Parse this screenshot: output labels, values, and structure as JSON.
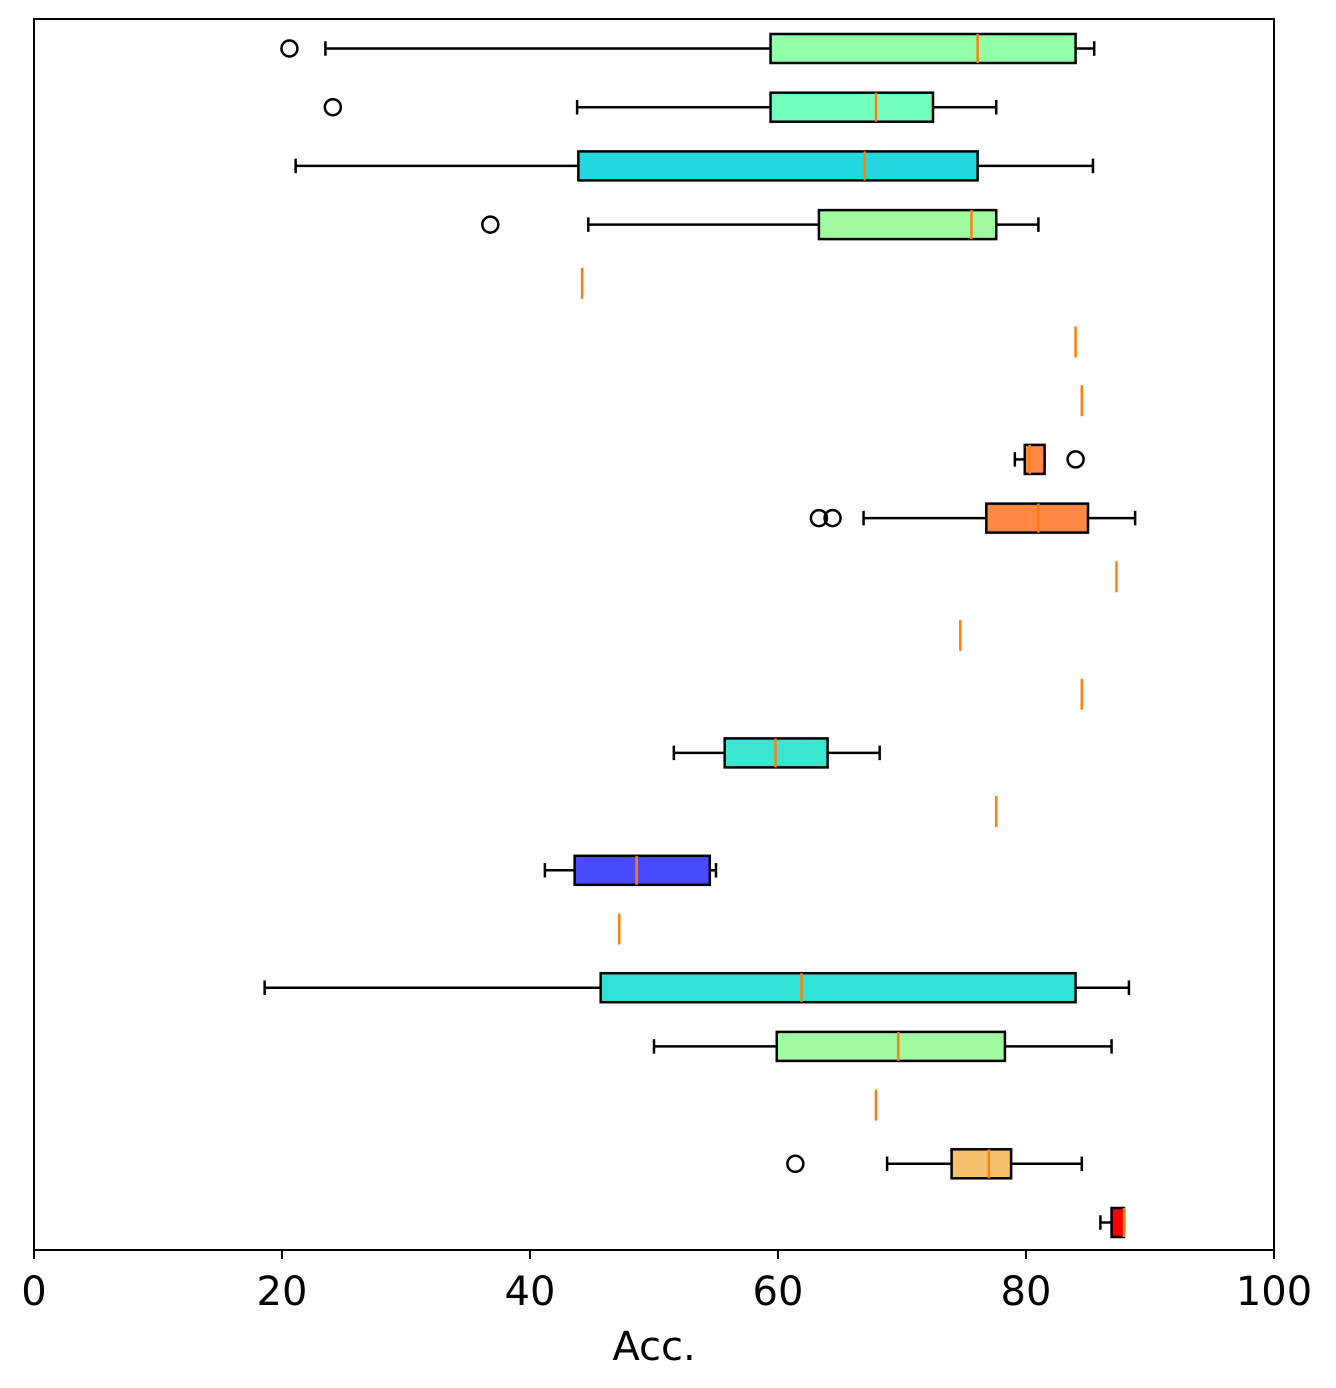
{
  "chart_data": {
    "type": "boxplot",
    "orientation": "horizontal",
    "title": "",
    "xlabel": "Acc.",
    "ylabel": "",
    "xlim": [
      0,
      100
    ],
    "xticks": [
      0,
      20,
      40,
      60,
      80,
      100
    ],
    "xtick_labels": [
      "0",
      "20",
      "40",
      "60",
      "80",
      "100"
    ],
    "grid": false,
    "median_color": "#ff7f0e",
    "boxes": [
      {
        "whisker_low": 23.5,
        "q1": 59.4,
        "median": 76.1,
        "q3": 84.0,
        "whisker_high": 85.5,
        "outliers": [
          20.6
        ],
        "color": "#90ffa8"
      },
      {
        "whisker_low": 43.8,
        "q1": 59.4,
        "median": 67.9,
        "q3": 72.5,
        "whisker_high": 77.6,
        "outliers": [
          24.1
        ],
        "color": "#72ffbe"
      },
      {
        "whisker_low": 21.1,
        "q1": 43.9,
        "median": 67.0,
        "q3": 76.1,
        "whisker_high": 85.4,
        "outliers": [],
        "color": "#22d7df"
      },
      {
        "whisker_low": 44.7,
        "q1": 63.3,
        "median": 75.6,
        "q3": 77.6,
        "whisker_high": 81.0,
        "outliers": [
          36.8
        ],
        "color": "#a0faa0"
      },
      {
        "whisker_low": 44.2,
        "q1": 44.2,
        "median": 44.2,
        "q3": 44.2,
        "whisker_high": 44.2,
        "outliers": [],
        "color": "#90ffa8"
      },
      {
        "whisker_low": 84.0,
        "q1": 84.0,
        "median": 84.0,
        "q3": 84.0,
        "whisker_high": 84.0,
        "outliers": [],
        "color": "#ff8844"
      },
      {
        "whisker_low": 84.5,
        "q1": 84.5,
        "median": 84.5,
        "q3": 84.5,
        "whisker_high": 84.5,
        "outliers": [],
        "color": "#ff8844"
      },
      {
        "whisker_low": 79.1,
        "q1": 79.9,
        "median": 80.3,
        "q3": 81.5,
        "whisker_high": 81.5,
        "outliers": [
          84.0
        ],
        "color": "#ff8844"
      },
      {
        "whisker_low": 66.9,
        "q1": 76.8,
        "median": 81.0,
        "q3": 85.0,
        "whisker_high": 88.8,
        "outliers": [
          63.3,
          64.4
        ],
        "color": "#ff8844"
      },
      {
        "whisker_low": 87.3,
        "q1": 87.3,
        "median": 87.3,
        "q3": 87.3,
        "whisker_high": 87.3,
        "outliers": [],
        "color": "#ff8844"
      },
      {
        "whisker_low": 74.7,
        "q1": 74.7,
        "median": 74.7,
        "q3": 74.7,
        "whisker_high": 74.7,
        "outliers": [],
        "color": "#ff8844"
      },
      {
        "whisker_low": 84.5,
        "q1": 84.5,
        "median": 84.5,
        "q3": 84.5,
        "whisker_high": 84.5,
        "outliers": [],
        "color": "#ff8844"
      },
      {
        "whisker_low": 51.6,
        "q1": 55.7,
        "median": 59.8,
        "q3": 64.0,
        "whisker_high": 68.2,
        "outliers": [],
        "color": "#3ae6d0"
      },
      {
        "whisker_low": 77.6,
        "q1": 77.6,
        "median": 77.6,
        "q3": 77.6,
        "whisker_high": 77.6,
        "outliers": [],
        "color": "#ff8844"
      },
      {
        "whisker_low": 41.2,
        "q1": 43.6,
        "median": 48.6,
        "q3": 54.5,
        "whisker_high": 55.0,
        "outliers": [],
        "color": "#4a4aff"
      },
      {
        "whisker_low": 47.2,
        "q1": 47.2,
        "median": 47.2,
        "q3": 47.2,
        "whisker_high": 47.2,
        "outliers": [],
        "color": "#4a4aff"
      },
      {
        "whisker_low": 18.6,
        "q1": 45.7,
        "median": 61.9,
        "q3": 84.0,
        "whisker_high": 88.3,
        "outliers": [],
        "color": "#30e2d6"
      },
      {
        "whisker_low": 50.0,
        "q1": 59.9,
        "median": 69.7,
        "q3": 78.3,
        "whisker_high": 86.9,
        "outliers": [],
        "color": "#a0faa0"
      },
      {
        "whisker_low": 67.9,
        "q1": 67.9,
        "median": 67.9,
        "q3": 67.9,
        "whisker_high": 67.9,
        "outliers": [],
        "color": "#a0faa0"
      },
      {
        "whisker_low": 68.8,
        "q1": 74.0,
        "median": 77.0,
        "q3": 78.8,
        "whisker_high": 84.5,
        "outliers": [
          61.4
        ],
        "color": "#f4c06c"
      },
      {
        "whisker_low": 86.0,
        "q1": 86.9,
        "median": 87.9,
        "q3": 87.9,
        "whisker_high": 87.9,
        "outliers": [],
        "color": "#ff0000"
      }
    ]
  }
}
